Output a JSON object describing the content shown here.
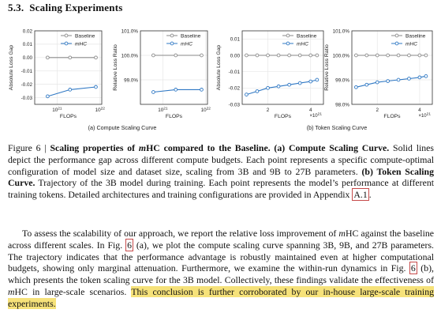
{
  "section": {
    "number": "5.3.",
    "title": "Scaling Experiments"
  },
  "colors": {
    "baseline": "#8a8a8a",
    "mhc": "#2f78c4",
    "highlight": "#f6e27a",
    "refbox": "#c64a4a"
  },
  "legend": {
    "baseline": "Baseline",
    "mhc": "mHC"
  },
  "subfigures": [
    {
      "label": "(a) Compute Scaling Curve"
    },
    {
      "label": "(b) Token Scaling Curve"
    }
  ],
  "chart_data": [
    {
      "type": "line",
      "panel": "a-left",
      "xlabel": "FLOPs",
      "ylabel": "Absolute Loss Gap",
      "xscale": "log",
      "xlim": [
        3e+20,
        1.1e+22
      ],
      "x_ticks": [
        "10^21",
        "10^22"
      ],
      "ylim": [
        -0.035,
        0.02
      ],
      "y_ticks": [
        "0.02",
        "0.01",
        "0.00",
        "-0.01",
        "-0.02",
        "-0.03"
      ],
      "grid": true,
      "legend_position": "top-right",
      "series": [
        {
          "name": "Baseline",
          "x": [
            6e+20,
            2e+21,
            8e+21
          ],
          "y": [
            0.0,
            0.0,
            0.0
          ]
        },
        {
          "name": "mHC",
          "x": [
            6e+20,
            2e+21,
            8e+21
          ],
          "y": [
            -0.029,
            -0.024,
            -0.022
          ]
        }
      ]
    },
    {
      "type": "line",
      "panel": "a-right",
      "xlabel": "FLOPs",
      "ylabel": "Relative Loss Ratio",
      "xscale": "log",
      "xlim": [
        3e+20,
        1.1e+22
      ],
      "x_ticks": [
        "10^21",
        "10^22"
      ],
      "ylim": [
        98.0,
        101.0
      ],
      "y_ticks": [
        "101.0%",
        "100.0%",
        "99.0%"
      ],
      "grid": true,
      "legend_position": "top-right",
      "series": [
        {
          "name": "Baseline",
          "x": [
            6e+20,
            2e+21,
            8e+21
          ],
          "y": [
            100.0,
            100.0,
            100.0
          ]
        },
        {
          "name": "mHC",
          "x": [
            6e+20,
            2e+21,
            8e+21
          ],
          "y": [
            98.5,
            98.6,
            98.6
          ]
        }
      ]
    },
    {
      "type": "line",
      "panel": "b-left",
      "xlabel": "FLOPs",
      "ylabel": "Absolute Loss Gap",
      "x_multiplier": "×10^21",
      "xlim": [
        0.8,
        4.6
      ],
      "x_ticks": [
        "2",
        "4"
      ],
      "ylim": [
        -0.03,
        0.015
      ],
      "y_ticks": [
        "0.01",
        "0.00",
        "-0.01",
        "-0.02",
        "-0.03"
      ],
      "grid": true,
      "legend_position": "top-right",
      "series": [
        {
          "name": "Baseline",
          "x": [
            1.0,
            1.5,
            2.0,
            2.5,
            3.0,
            3.5,
            4.0,
            4.3
          ],
          "y": [
            0,
            0,
            0,
            0,
            0,
            0,
            0,
            0
          ]
        },
        {
          "name": "mHC",
          "x": [
            1.0,
            1.5,
            2.0,
            2.5,
            3.0,
            3.5,
            4.0,
            4.3
          ],
          "y": [
            -0.024,
            -0.022,
            -0.02,
            -0.019,
            -0.018,
            -0.017,
            -0.016,
            -0.015
          ]
        }
      ]
    },
    {
      "type": "line",
      "panel": "b-right",
      "xlabel": "FLOPs",
      "ylabel": "Relative Loss Ratio",
      "x_multiplier": "×10^21",
      "xlim": [
        0.8,
        4.6
      ],
      "x_ticks": [
        "2",
        "4"
      ],
      "ylim": [
        98.0,
        101.0
      ],
      "y_ticks": [
        "101.0%",
        "100.0%",
        "99.0%",
        "98.0%"
      ],
      "grid": true,
      "legend_position": "top-right",
      "series": [
        {
          "name": "Baseline",
          "x": [
            1.0,
            1.5,
            2.0,
            2.5,
            3.0,
            3.5,
            4.0,
            4.3
          ],
          "y": [
            100,
            100,
            100,
            100,
            100,
            100,
            100,
            100
          ]
        },
        {
          "name": "mHC",
          "x": [
            1.0,
            1.5,
            2.0,
            2.5,
            3.0,
            3.5,
            4.0,
            4.3
          ],
          "y": [
            98.7,
            98.8,
            98.9,
            98.95,
            99.0,
            99.05,
            99.1,
            99.15
          ]
        }
      ]
    }
  ],
  "caption": {
    "lead": "Figure 6 | ",
    "title_a": "Scaling properties of ",
    "title_m": "m",
    "title_b": "HC compared to the Baseline. (a) Compute Scaling Curve.",
    "text1": " Solid lines depict the performance gap across different compute budgets. Each point represents a specific compute-optimal configuration of model size and dataset size, scaling from 3B and 9B to 27B parameters. ",
    "bold2": "(b) Token Scaling Curve.",
    "text2": " Trajectory of the 3B model during training. Each point represents the model’s performance at different training tokens. Detailed architectures and training configurations are provided in Appendix ",
    "ref": "A.1",
    "end": "."
  },
  "paragraph": {
    "p1": "To assess the scalability of our approach, we report the relative loss improvement of ",
    "m1": "m",
    "p2": "HC against the baseline across different scales. In Fig. ",
    "ref1": "6",
    "p3": " (a), we plot the compute scaling curve spanning 3B, 9B, and 27B parameters. The trajectory indicates that the performance advantage is robustly maintained even at higher computational budgets, showing only marginal attenuation. Furthermore, we examine the within-run dynamics in Fig. ",
    "ref2": "6",
    "p4": " (b), which presents the token scaling curve for the 3B model. Collectively, these findings validate the effectiveness of ",
    "m2": "m",
    "p5": "HC in large-scale scenarios. ",
    "highlight": "This conclusion is further corroborated by our in-house large-scale training experiments."
  }
}
